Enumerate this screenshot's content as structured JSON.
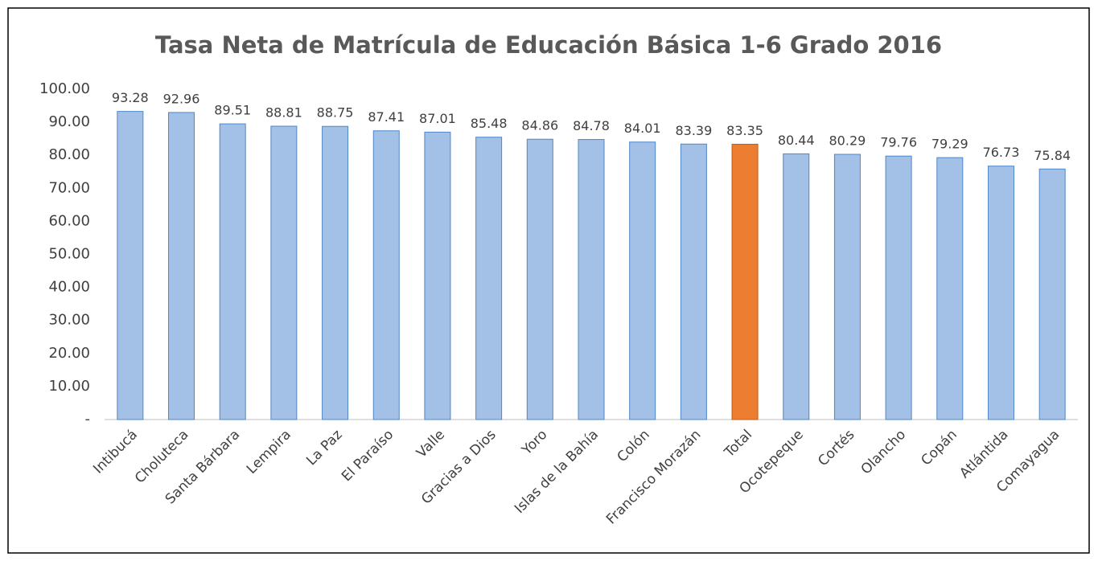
{
  "chart_data": {
    "type": "bar",
    "title": "Tasa Neta de Matrícula de Educación Básica 1-6 Grado 2016",
    "categories": [
      "Intibucá",
      "Choluteca",
      "Santa Bárbara",
      "Lempira",
      "La Paz",
      "El Paraíso",
      "Valle",
      "Gracias a Dios",
      "Yoro",
      "Islas de la Bahía",
      "Colón",
      "Francisco Morazán",
      "Total",
      "Ocotepeque",
      "Cortés",
      "Olancho",
      "Copán",
      "Atlántida",
      "Comayagua"
    ],
    "values": [
      93.28,
      92.96,
      89.51,
      88.81,
      88.75,
      87.41,
      87.01,
      85.48,
      84.86,
      84.78,
      84.01,
      83.39,
      83.35,
      80.44,
      80.29,
      79.76,
      79.29,
      76.73,
      75.84
    ],
    "colors": [
      "#a3c0e7",
      "#a3c0e7",
      "#a3c0e7",
      "#a3c0e7",
      "#a3c0e7",
      "#a3c0e7",
      "#a3c0e7",
      "#a3c0e7",
      "#a3c0e7",
      "#a3c0e7",
      "#a3c0e7",
      "#a3c0e7",
      "#ed7d31",
      "#a3c0e7",
      "#a3c0e7",
      "#a3c0e7",
      "#a3c0e7",
      "#a3c0e7",
      "#a3c0e7"
    ],
    "ylim": [
      0,
      100
    ],
    "yticks": [
      {
        "value": 0,
        "label": "-"
      },
      {
        "value": 10,
        "label": "10.00"
      },
      {
        "value": 20,
        "label": "20.00"
      },
      {
        "value": 30,
        "label": "30.00"
      },
      {
        "value": 40,
        "label": "40.00"
      },
      {
        "value": 50,
        "label": "50.00"
      },
      {
        "value": 60,
        "label": "60.00"
      },
      {
        "value": 70,
        "label": "70.00"
      },
      {
        "value": 80,
        "label": "80.00"
      },
      {
        "value": 90,
        "label": "90.00"
      },
      {
        "value": 100,
        "label": "100.00"
      }
    ],
    "grid": false
  }
}
